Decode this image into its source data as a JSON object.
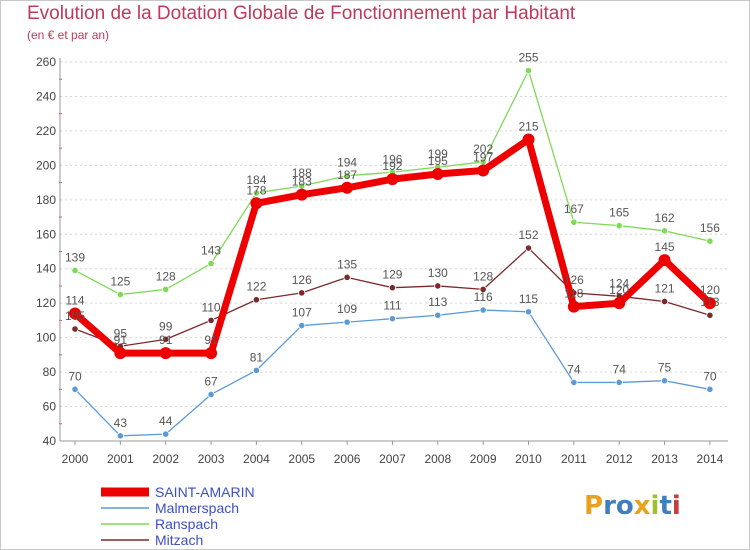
{
  "title": "Evolution de la Dotation Globale de Fonctionnement par Habitant",
  "subtitle": "(en € et par an)",
  "logo": {
    "text": "Proxiti",
    "letter_colors": [
      "#e8a21f",
      "#3f7fc0",
      "#3f7fc0",
      "#e8a21f",
      "#9fbf2e",
      "#3f7fc0",
      "#c83c3c"
    ]
  },
  "chart_data": {
    "type": "line",
    "x": [
      "2000",
      "2001",
      "2002",
      "2003",
      "2004",
      "2005",
      "2006",
      "2007",
      "2008",
      "2009",
      "2010",
      "2011",
      "2012",
      "2013",
      "2014"
    ],
    "ylim": [
      40,
      260
    ],
    "yticks": [
      40,
      60,
      80,
      100,
      120,
      140,
      160,
      180,
      200,
      220,
      240,
      260
    ],
    "grid": "horizontal",
    "legend_position": "bottom-left",
    "series": [
      {
        "name": "Malmerspach",
        "color": "#5b9bd5",
        "highlight": false,
        "values": [
          70,
          43,
          44,
          67,
          81,
          107,
          109,
          111,
          113,
          116,
          115,
          74,
          74,
          75,
          70
        ]
      },
      {
        "name": "Ranspach",
        "color": "#7ed957",
        "highlight": false,
        "values": [
          139,
          125,
          128,
          143,
          184,
          188,
          194,
          196,
          199,
          202,
          255,
          167,
          165,
          162,
          156
        ]
      },
      {
        "name": "Mitzach",
        "color": "#7b2a2a",
        "highlight": false,
        "values": [
          105,
          95,
          99,
          110,
          122,
          126,
          135,
          129,
          130,
          128,
          152,
          126,
          124,
          121,
          113
        ]
      },
      {
        "name": "SAINT-AMARIN",
        "color": "#ee0000",
        "highlight": true,
        "values": [
          114,
          91,
          91,
          91,
          178,
          183,
          187,
          192,
          195,
          197,
          215,
          118,
          120,
          145,
          120
        ]
      }
    ],
    "legend": [
      "SAINT-AMARIN",
      "Malmerspach",
      "Ranspach",
      "Mitzach"
    ]
  }
}
